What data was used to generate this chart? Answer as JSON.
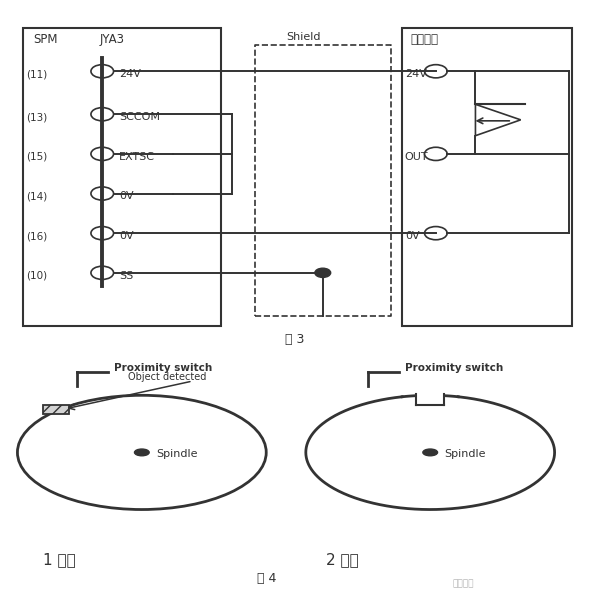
{
  "bg_color": "#ffffff",
  "line_color": "#333333",
  "title_fig3": "图 3",
  "title_fig4": "图 4",
  "label1": "1 突起",
  "label2": "2 凹槽",
  "spm_label": "SPM",
  "jya3_label": "JYA3",
  "shield_label": "Shield",
  "jinjin_label": "接近开关",
  "pins": [
    "(11)",
    "(13)",
    "(15)",
    "(14)",
    "(16)",
    "(10)"
  ],
  "pin_labels": [
    "24V",
    "SCCOM",
    "EXTSC",
    "0V",
    "0V",
    "SS"
  ],
  "right_labels": [
    "24V",
    "OUT",
    "0V"
  ],
  "prox_switch": "Proximity switch",
  "obj_detected": "Object detected",
  "spindle": "Spindle",
  "watermark": "数控笔记"
}
